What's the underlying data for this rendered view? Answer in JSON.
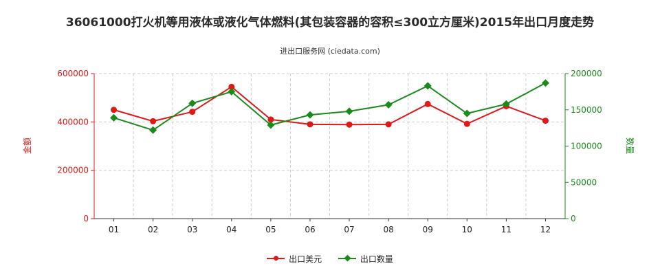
{
  "title": "36061000打火机等用液体或液化气体燃料(其包装容器的容积≤300立方厘米)2015年出口月度走势",
  "subtitle": "进出口服务网 (ciedata.com)",
  "colors": {
    "amount": "#e01818",
    "quantity": "#1a8a1a",
    "axis_left": "#e01818",
    "axis_right": "#1a8a1a",
    "grid": "#cccccc"
  },
  "chart_data": {
    "type": "line",
    "title": "36061000打火机等用液体或液化气体燃料(其包装容器的容积≤300立方厘米)2015年出口月度走势",
    "categories": [
      "01",
      "02",
      "03",
      "04",
      "05",
      "06",
      "07",
      "08",
      "09",
      "10",
      "11",
      "12"
    ],
    "y_left": {
      "label": "金额",
      "ylim": [
        0,
        600000
      ],
      "ticks": [
        0,
        200000,
        400000,
        600000
      ]
    },
    "y_right": {
      "label": "数量",
      "ylim": [
        0,
        200000
      ],
      "ticks": [
        0,
        50000,
        100000,
        150000,
        200000
      ]
    },
    "grid": true,
    "legend_position": "bottom",
    "series": [
      {
        "name": "出口美元",
        "axis": "left",
        "marker": "circle",
        "values": [
          450000,
          403000,
          442000,
          545000,
          410000,
          390000,
          389000,
          390000,
          474000,
          392000,
          465000,
          405000
        ]
      },
      {
        "name": "出口数量",
        "axis": "right",
        "marker": "diamond",
        "values": [
          139000,
          122000,
          159000,
          175000,
          129000,
          143000,
          148000,
          157000,
          183000,
          145000,
          158000,
          187000
        ]
      }
    ]
  }
}
